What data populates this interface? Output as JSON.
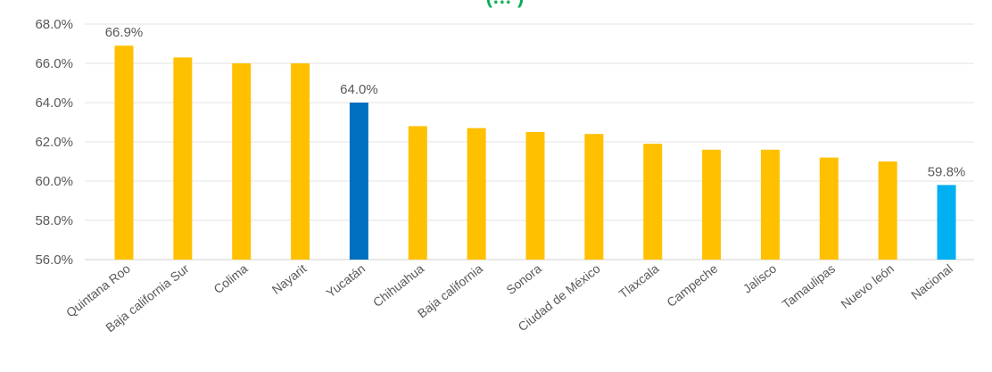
{
  "chart_data": {
    "type": "bar",
    "title": "(… )",
    "categories": [
      "Quintana Roo",
      "Baja california Sur",
      "Colima",
      "Nayarit",
      "Yucatán",
      "Chihuahua",
      "Baja california",
      "Sonora",
      "Ciudad de México",
      "Tlaxcala",
      "Campeche",
      "Jalisco",
      "Tamaulipas",
      "Nuevo león",
      "Nacional"
    ],
    "values": [
      66.9,
      66.3,
      66.0,
      66.0,
      64.0,
      62.8,
      62.7,
      62.5,
      62.4,
      61.9,
      61.6,
      61.6,
      61.2,
      61.0,
      59.8
    ],
    "value_suffix": "%",
    "data_labels": [
      {
        "index": 0,
        "text": "66.9%"
      },
      {
        "index": 4,
        "text": "64.0%"
      },
      {
        "index": 14,
        "text": "59.8%"
      }
    ],
    "ylim": [
      56,
      68
    ],
    "yticks": [
      56,
      58,
      60,
      62,
      64,
      66,
      68
    ],
    "ytick_labels": [
      "56.0%",
      "58.0%",
      "60.0%",
      "62.0%",
      "64.0%",
      "66.0%",
      "68.0%"
    ],
    "xlabel": "",
    "ylabel": "",
    "grid": true,
    "legend": "none",
    "colors": {
      "default_bar": "#FFC000",
      "highlight_bar": "#0070C0",
      "national_bar": "#00B0F0",
      "title": "#00B050",
      "grid": "#E3E3E3",
      "axis_text": "#595959"
    },
    "highlight_index": 4,
    "national_index": 14
  }
}
